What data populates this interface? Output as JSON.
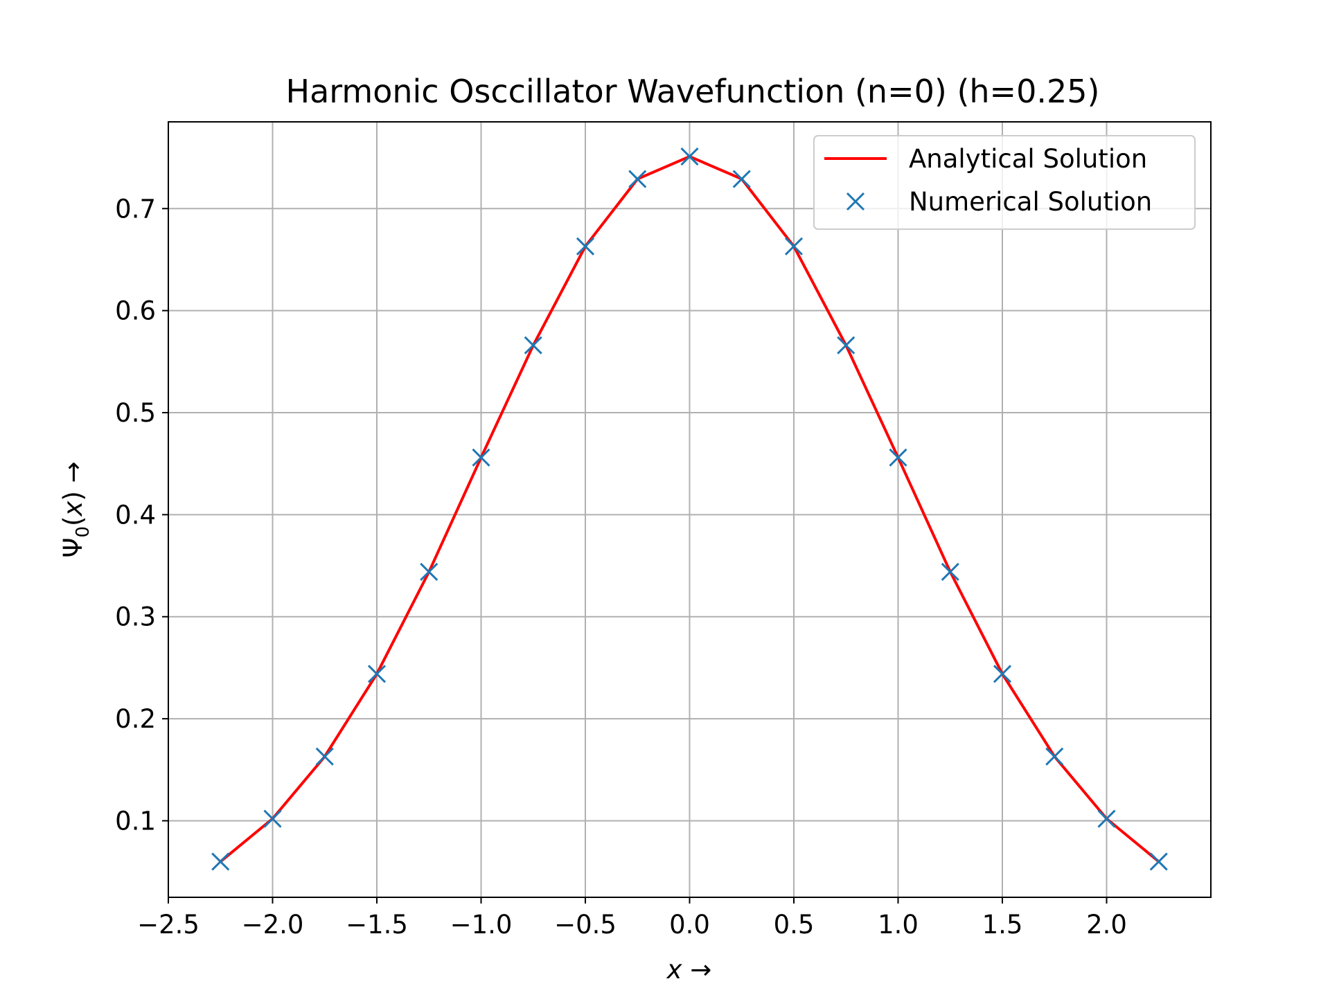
{
  "chart_data": {
    "type": "line",
    "title": "Harmonic Osccillator Wavefunction (n=0) (h=0.25)",
    "xlabel": "x →",
    "ylabel": "Ψ0(x) →",
    "xlim": [
      -2.5,
      2.5
    ],
    "ylim": [
      0.025,
      0.785
    ],
    "xticks": [
      "−2.5",
      "−2.0",
      "−1.5",
      "−1.0",
      "−0.5",
      "0.0",
      "0.5",
      "1.0",
      "1.5",
      "2.0"
    ],
    "yticks": [
      "0.1",
      "0.2",
      "0.3",
      "0.4",
      "0.5",
      "0.6",
      "0.7"
    ],
    "grid": true,
    "legend_position": "top-right",
    "x": [
      -2.25,
      -2.0,
      -1.75,
      -1.5,
      -1.25,
      -1.0,
      -0.75,
      -0.5,
      -0.25,
      0.0,
      0.25,
      0.5,
      0.75,
      1.0,
      1.25,
      1.5,
      1.75,
      2.0,
      2.25
    ],
    "series": [
      {
        "name": "Analytical Solution",
        "style": "line",
        "color": "#ff0000",
        "values": [
          0.06,
          0.102,
          0.163,
          0.244,
          0.344,
          0.456,
          0.566,
          0.663,
          0.729,
          0.751,
          0.729,
          0.663,
          0.566,
          0.456,
          0.344,
          0.244,
          0.163,
          0.102,
          0.06
        ]
      },
      {
        "name": "Numerical Solution",
        "style": "marker-x",
        "color": "#1f77b4",
        "values": [
          0.06,
          0.102,
          0.163,
          0.244,
          0.344,
          0.456,
          0.566,
          0.663,
          0.729,
          0.751,
          0.729,
          0.663,
          0.566,
          0.456,
          0.344,
          0.244,
          0.163,
          0.102,
          0.06
        ]
      }
    ]
  }
}
